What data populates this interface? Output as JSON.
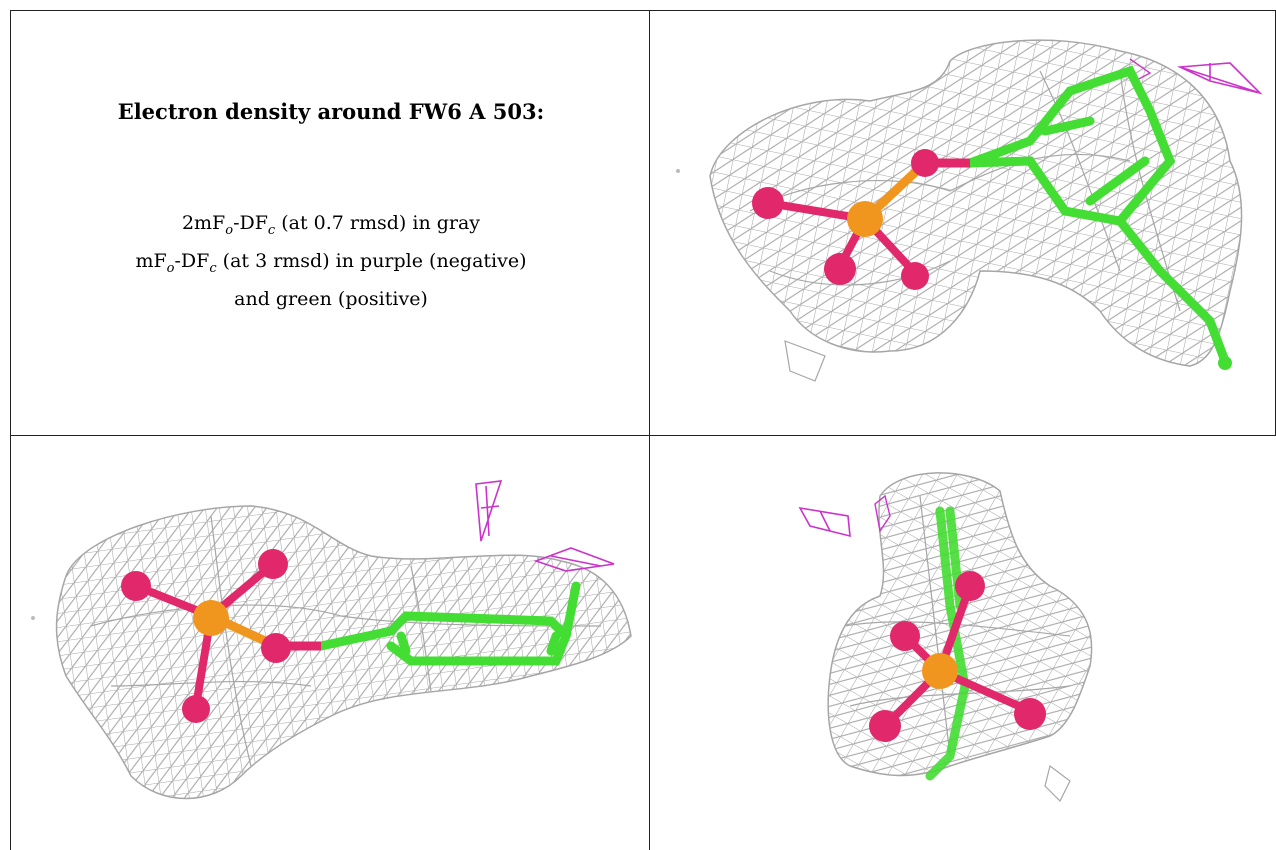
{
  "caption": {
    "title": "Electron density around FW6 A 503:",
    "line1": {
      "pre": "2mF",
      "sub1": "o",
      "mid": "-DF",
      "sub2": "c",
      "post": " (at 0.7 rmsd) in gray"
    },
    "line2": {
      "pre": "mF",
      "sub1": "o",
      "mid": "-DF",
      "sub2": "c",
      "post": " (at 3 rmsd) in purple (negative)"
    },
    "line3": "and green (positive)"
  },
  "colors": {
    "mesh_positive_2fofc": "#a6a6a6",
    "mesh_negative": "#cc33cc",
    "carbon": "#44dd33",
    "oxygen": "#e0286a",
    "phosphorus": "#f0951e",
    "border": "#222222"
  },
  "views": [
    {
      "id": "view-1",
      "label": ""
    },
    {
      "id": "view-2",
      "label": ""
    },
    {
      "id": "view-3",
      "label": ""
    }
  ]
}
